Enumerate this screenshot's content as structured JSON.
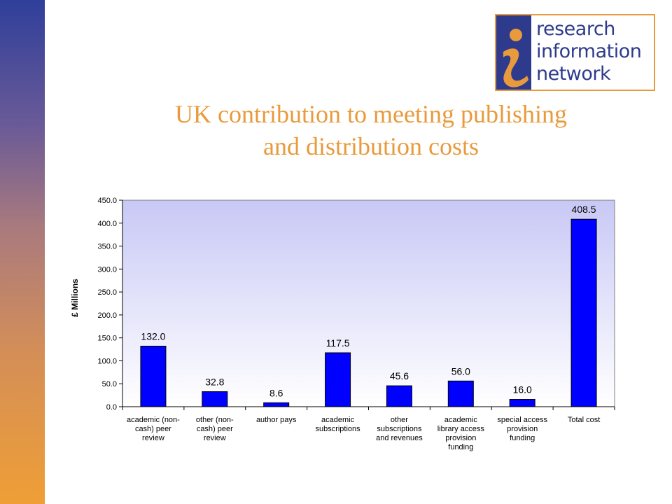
{
  "header": {
    "title_line1": "UK contribution to meeting publishing",
    "title_line2": "and distribution costs"
  },
  "logo": {
    "lines": [
      "research",
      "information",
      "network"
    ],
    "brand_blue": "#2e3b8c",
    "brand_orange": "#e89a3c"
  },
  "colors": {
    "bar": "#0000ff",
    "title": "#e89a3c"
  },
  "chart_data": {
    "type": "bar",
    "title": "",
    "ylabel": "£ Millions",
    "xlabel": "",
    "ylim": [
      0,
      450
    ],
    "yticks": [
      "0.0",
      "50.0",
      "100.0",
      "150.0",
      "200.0",
      "250.0",
      "300.0",
      "350.0",
      "400.0",
      "450.0"
    ],
    "categories": [
      [
        "academic (non-",
        "cash) peer",
        "review"
      ],
      [
        "other (non-",
        "cash) peer",
        "review"
      ],
      [
        "author pays"
      ],
      [
        "academic",
        "subscriptions"
      ],
      [
        "other",
        "subscriptions",
        "and revenues"
      ],
      [
        "academic",
        "library access",
        "provision",
        "funding"
      ],
      [
        "special access",
        "provision",
        "funding"
      ],
      [
        "Total cost"
      ]
    ],
    "values": [
      132.0,
      32.8,
      8.6,
      117.5,
      45.6,
      56.0,
      16.0,
      408.5
    ],
    "value_labels": [
      "132.0",
      "32.8",
      "8.6",
      "117.5",
      "45.6",
      "56.0",
      "16.0",
      "408.5"
    ],
    "grid": false,
    "legend": "none"
  }
}
